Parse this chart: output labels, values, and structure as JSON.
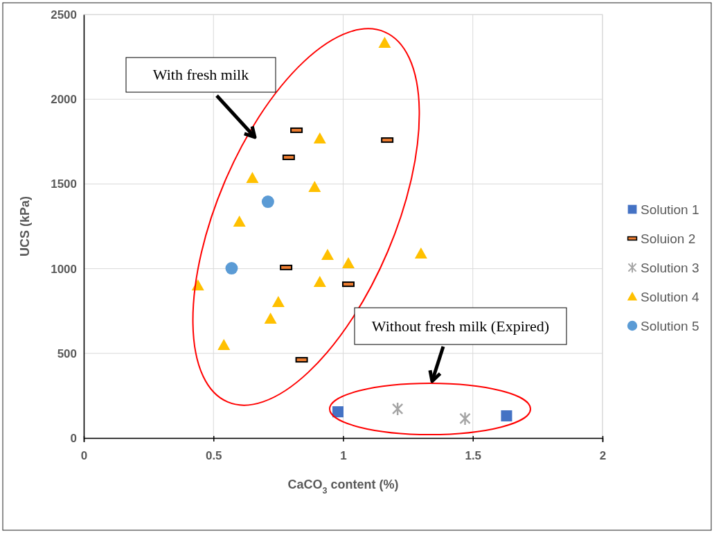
{
  "chart_data": {
    "type": "scatter",
    "xlabel": "CaCO$_{3}$ content (%)",
    "ylabel": "UCS (kPa)",
    "xlim": [
      0,
      2
    ],
    "xticks": [
      0,
      0.5,
      1,
      1.5,
      2
    ],
    "ylim": [
      0,
      2500
    ],
    "yticks": [
      0,
      500,
      1000,
      1500,
      2000,
      2500
    ],
    "grid": true,
    "legend": "right",
    "annotations": [
      "With fresh milk",
      "Without fresh milk (Expired)"
    ],
    "series": [
      {
        "name": "Solution 1",
        "color": "#4472c4",
        "marker": "square",
        "x": [
          0.98,
          1.63
        ],
        "values": [
          155,
          131
        ]
      },
      {
        "name": "Soluion 2",
        "color": "#ed7d31",
        "x": [
          0.82,
          0.79,
          1.17,
          0.78,
          1.02,
          0.84
        ],
        "values": [
          1817,
          1657,
          1759,
          1007,
          908,
          462
        ]
      },
      {
        "name": "Solution 3",
        "color": "#a5a5a5",
        "marker": "cross",
        "x": [
          1.21,
          1.47
        ],
        "values": [
          172,
          115
        ]
      },
      {
        "name": "Solution 4",
        "color": "#ffc000",
        "marker": "triangle",
        "x": [
          1.16,
          0.91,
          0.65,
          0.89,
          0.6,
          0.94,
          1.02,
          1.3,
          0.91,
          0.44,
          0.75,
          0.72,
          0.54
        ],
        "values": [
          2332,
          1768,
          1534,
          1481,
          1277,
          1080,
          1031,
          1088,
          921,
          900,
          802,
          704,
          548
        ]
      },
      {
        "name": "Solution 5",
        "color": "#5b9bd5",
        "marker": "circle",
        "x": [
          0.71,
          0.57
        ],
        "values": [
          1395,
          1002
        ]
      }
    ]
  }
}
